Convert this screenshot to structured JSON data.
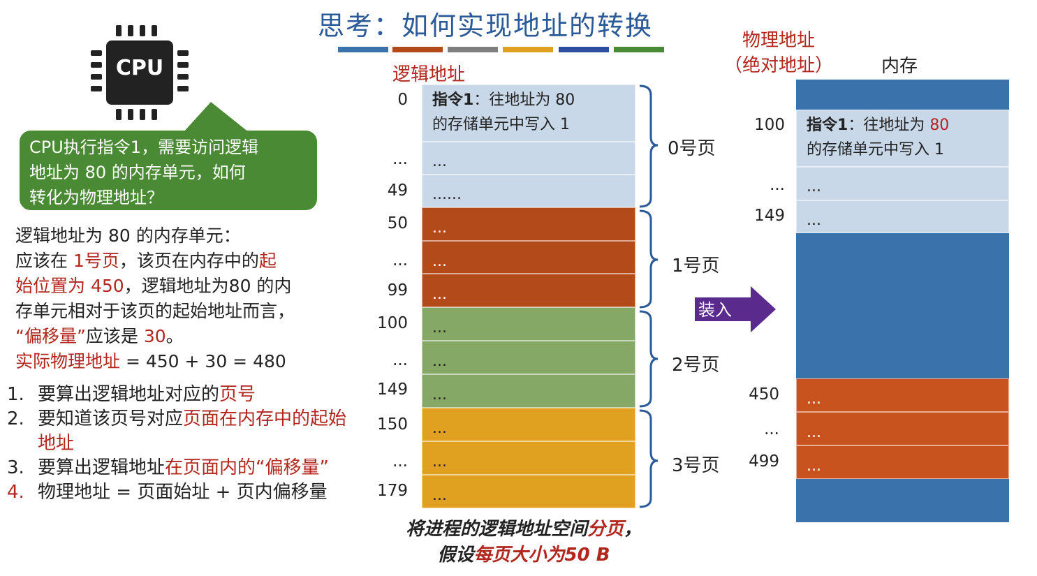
{
  "title": "思考：如何实现地址的转换",
  "stripe_colors": [
    "#3a73ab",
    "#b34a1a",
    "#7f7f7f",
    "#e0a020",
    "#2e4fa0",
    "#4a8a35"
  ],
  "cpu_label": "CPU",
  "bubble_lines": [
    "CPU执行指令1，需要访问逻辑",
    "地址为 80 的内存单元，如何",
    "转化为物理地址？"
  ],
  "explain": {
    "l1": "逻辑地址为 80 的内存单元：",
    "l2a": "应该在 ",
    "l2b": "1号页",
    "l2c": "，该页在内存中的",
    "l2d": "起",
    "l3a": "始位置为 450",
    "l3b": "，逻辑地址为80 的内",
    "l4": "存单元相对于该页的起始地址而言，",
    "l5a": "“偏移量”",
    "l5b": "应该是 ",
    "l5c": "30",
    "l5d": "。",
    "l6a": "实际物理地址",
    "l6b": " = 450 + 30 = 480"
  },
  "steps": [
    {
      "num": "1.",
      "a": "要算出逻辑地址对应的",
      "b": "页号",
      "c": ""
    },
    {
      "num": "2.",
      "a": "要知道该页号对应",
      "b": "页面在内存中的起始地址",
      "c": ""
    },
    {
      "num": "3.",
      "a": "要算出逻辑地址",
      "b": "在页面内的“偏移量”",
      "c": ""
    },
    {
      "num": "4.",
      "a": "物理地址 = 页面始址 + 页内偏移量",
      "b": "",
      "c": ""
    }
  ],
  "logical": {
    "label": "逻辑地址",
    "first_row_a": "指令1",
    "first_row_b": "：往地址为 80",
    "first_row_c": "的存储单元中写入 1",
    "ellipsis": "...",
    "ellipsis6": "......",
    "addresses": [
      "0",
      "...",
      "49",
      "50",
      "...",
      "99",
      "100",
      "...",
      "149",
      "150",
      "...",
      "179"
    ],
    "pages": [
      "0号页",
      "1号页",
      "2号页",
      "3号页"
    ],
    "colors": {
      "p0": "#c8d8e8",
      "p1": "#b34a1a",
      "p2": "#86a866",
      "p3": "#e0a020"
    }
  },
  "caption": {
    "a": "将进程的逻辑地址空间",
    "b": "分页",
    "c": "，假设",
    "d": "每页大小为",
    "e": "50 B"
  },
  "arrow_label": "装入",
  "memory": {
    "phys_label_1": "物理地址",
    "phys_label_2": "（绝对地址）",
    "mem_label": "内存",
    "row_a": "指令1",
    "row_b": "：往地址为 ",
    "row_c": "80",
    "row_d": "的存储单元中写入 1",
    "addresses": [
      "100",
      "...",
      "149",
      "450",
      "...",
      "499"
    ],
    "colors": {
      "top": "#3a73ab",
      "light": "#c8d8e8",
      "orange": "#c9531e"
    }
  }
}
